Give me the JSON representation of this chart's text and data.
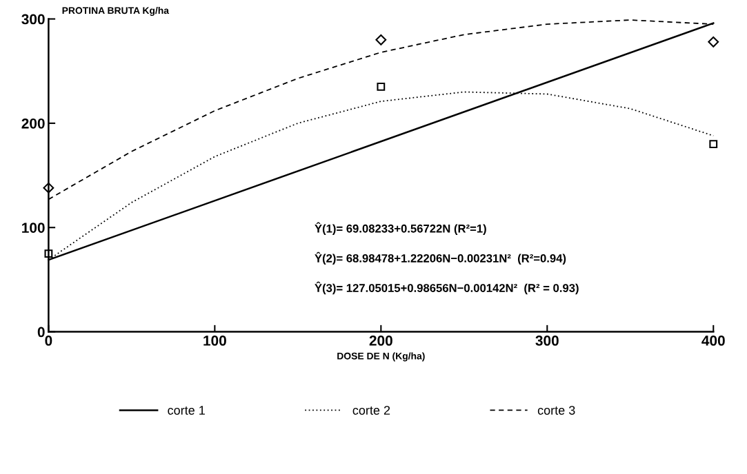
{
  "chart_data": {
    "type": "line",
    "ylabel": "PROTINA BRUTA Kg/ha",
    "xlabel": "DOSE DE N (Kg/ha)",
    "xlim": [
      0,
      400
    ],
    "xticks": [
      0,
      100,
      200,
      300,
      400
    ],
    "ylim": [
      0,
      300
    ],
    "yticks": [
      0,
      100,
      200,
      300
    ],
    "grid": false,
    "legend": "bottom",
    "series": [
      {
        "name": "corte 1",
        "color": "#000000",
        "line_style": "solid",
        "marker": "none",
        "x": [
          0,
          400
        ],
        "values": [
          69,
          296
        ]
      },
      {
        "name": "corte 2",
        "color": "#000000",
        "line_style": "dotted",
        "marker": "none",
        "x": [
          0,
          50,
          100,
          150,
          200,
          250,
          300,
          350,
          400
        ],
        "values": [
          69,
          124,
          168,
          200,
          221,
          230,
          228,
          214,
          188
        ]
      },
      {
        "name": "corte 3",
        "color": "#000000",
        "line_style": "dashed",
        "marker": "none",
        "x": [
          0,
          50,
          100,
          150,
          200,
          250,
          300,
          350,
          400
        ],
        "values": [
          127,
          173,
          212,
          243,
          268,
          285,
          295,
          299,
          295
        ]
      },
      {
        "type": "scatter",
        "color": "#000000",
        "marker": "square",
        "x": [
          0,
          200,
          400
        ],
        "values": [
          75,
          235,
          180
        ]
      },
      {
        "type": "scatter",
        "color": "#000000",
        "marker": "diamond",
        "x": [
          0,
          200,
          400
        ],
        "values": [
          138,
          280,
          278
        ]
      }
    ],
    "annotations": [
      {
        "text": "Ŷ(1)= 69.08233+0.56722N (R²=1)"
      },
      {
        "text": "Ŷ(2)= 68.98478+1.22206N−0.00231N²  (R²=0.94)"
      },
      {
        "text": "Ŷ(3)= 127.05015+0.98656N−0.00142N²  (R² = 0.93)"
      }
    ]
  }
}
